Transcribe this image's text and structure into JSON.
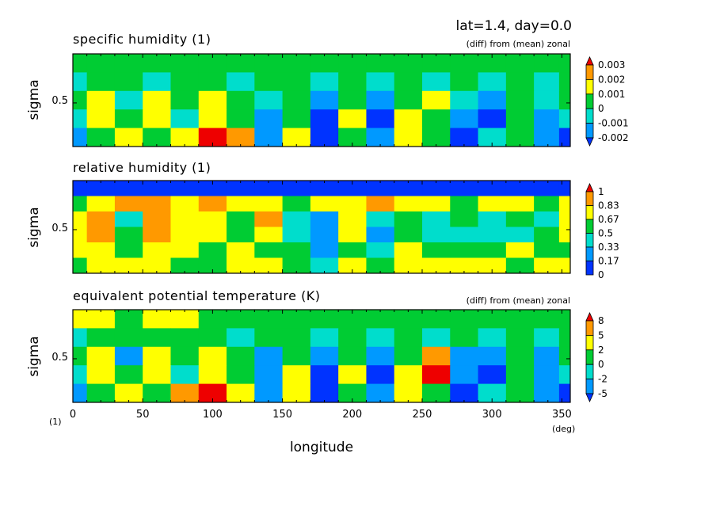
{
  "figure": {
    "header": "lat=1.4, day=0.0",
    "xlabel": "longitude",
    "x_unit": "(deg)",
    "y_unit": "(1)"
  },
  "colors": {
    "levels": [
      "#0033ff",
      "#0099ff",
      "#00ddcc",
      "#00cc33",
      "#ffff00",
      "#ff9900",
      "#ee0000"
    ]
  },
  "chart_data": [
    {
      "type": "heatmap",
      "title": "specific humidity (1)",
      "note": "(diff) from (mean) zonal",
      "ylabel": "sigma",
      "xlim": [
        0,
        356
      ],
      "ylim": [
        0.1,
        0.95
      ],
      "y_ticks": [
        "0.5"
      ],
      "colorbar_labels": [
        "0.003",
        "0.002",
        "0.001",
        "0",
        "-0.001",
        "-0.002"
      ],
      "field": {
        "x": [
          0,
          20,
          40,
          60,
          80,
          100,
          120,
          140,
          160,
          180,
          200,
          220,
          240,
          260,
          280,
          300,
          320,
          340,
          356
        ],
        "y": [
          0.9,
          0.7,
          0.5,
          0.3,
          0.15
        ],
        "levels": [
          [
            3,
            3,
            3,
            3,
            3,
            3,
            3,
            3,
            3,
            3,
            3,
            3,
            3,
            3,
            3,
            3,
            3,
            3,
            3
          ],
          [
            2,
            3,
            3,
            2,
            3,
            3,
            2,
            3,
            3,
            2,
            3,
            2,
            3,
            2,
            3,
            2,
            3,
            2,
            3
          ],
          [
            3,
            4,
            2,
            4,
            3,
            4,
            3,
            2,
            3,
            1,
            3,
            1,
            3,
            4,
            2,
            1,
            3,
            2,
            3
          ],
          [
            2,
            4,
            3,
            4,
            2,
            4,
            3,
            1,
            3,
            0,
            4,
            0,
            4,
            3,
            1,
            0,
            3,
            1,
            2
          ],
          [
            1,
            3,
            4,
            3,
            4,
            6,
            5,
            1,
            4,
            0,
            3,
            1,
            4,
            3,
            0,
            2,
            3,
            1,
            0
          ]
        ]
      }
    },
    {
      "type": "heatmap",
      "title": "relative humidity (1)",
      "ylabel": "sigma",
      "xlim": [
        0,
        356
      ],
      "ylim": [
        0.1,
        0.95
      ],
      "y_ticks": [
        "0.5"
      ],
      "colorbar_labels": [
        "1",
        "0.83",
        "0.67",
        "0.5",
        "0.33",
        "0.17",
        "0"
      ],
      "field": {
        "x": [
          0,
          20,
          40,
          60,
          80,
          100,
          120,
          140,
          160,
          180,
          200,
          220,
          240,
          260,
          280,
          300,
          320,
          340,
          356
        ],
        "y": [
          0.92,
          0.8,
          0.65,
          0.5,
          0.35,
          0.2
        ],
        "levels": [
          [
            0,
            0,
            0,
            0,
            0,
            0,
            0,
            0,
            0,
            0,
            0,
            0,
            0,
            0,
            0,
            0,
            0,
            0,
            0
          ],
          [
            3,
            4,
            5,
            5,
            4,
            5,
            4,
            4,
            3,
            4,
            4,
            5,
            4,
            4,
            3,
            4,
            4,
            3,
            4
          ],
          [
            4,
            5,
            2,
            5,
            4,
            4,
            3,
            5,
            2,
            1,
            4,
            2,
            3,
            2,
            3,
            2,
            3,
            2,
            4
          ],
          [
            4,
            5,
            3,
            5,
            4,
            4,
            3,
            4,
            2,
            1,
            4,
            1,
            3,
            2,
            2,
            2,
            2,
            3,
            4
          ],
          [
            4,
            4,
            3,
            4,
            4,
            3,
            4,
            3,
            3,
            1,
            3,
            2,
            4,
            3,
            3,
            3,
            4,
            3,
            3
          ],
          [
            3,
            4,
            4,
            4,
            3,
            3,
            4,
            4,
            3,
            2,
            4,
            3,
            4,
            4,
            4,
            4,
            3,
            4,
            4
          ]
        ]
      }
    },
    {
      "type": "heatmap",
      "title": "equivalent potential temperature (K)",
      "note": "(diff) from (mean) zonal",
      "ylabel": "sigma",
      "xlim": [
        0,
        356
      ],
      "ylim": [
        0.1,
        0.95
      ],
      "y_ticks": [
        "0.5"
      ],
      "x_ticks": [
        "0",
        "50",
        "100",
        "150",
        "200",
        "250",
        "300",
        "350"
      ],
      "x_tick_values": [
        0,
        50,
        100,
        150,
        200,
        250,
        300,
        350
      ],
      "colorbar_labels": [
        "8",
        "5",
        "2",
        "0",
        "-2",
        "-5"
      ],
      "field": {
        "x": [
          0,
          20,
          40,
          60,
          80,
          100,
          120,
          140,
          160,
          180,
          200,
          220,
          240,
          260,
          280,
          300,
          320,
          340,
          356
        ],
        "y": [
          0.9,
          0.7,
          0.5,
          0.3,
          0.15
        ],
        "levels": [
          [
            4,
            4,
            3,
            4,
            4,
            3,
            3,
            3,
            3,
            3,
            3,
            3,
            3,
            3,
            3,
            3,
            3,
            3,
            3
          ],
          [
            2,
            3,
            3,
            3,
            3,
            3,
            2,
            3,
            3,
            2,
            3,
            2,
            3,
            2,
            3,
            2,
            3,
            2,
            3
          ],
          [
            3,
            4,
            1,
            4,
            3,
            4,
            3,
            1,
            3,
            1,
            3,
            1,
            3,
            5,
            1,
            1,
            3,
            1,
            3
          ],
          [
            2,
            4,
            3,
            4,
            2,
            4,
            3,
            1,
            4,
            0,
            4,
            0,
            4,
            6,
            1,
            0,
            3,
            1,
            2
          ],
          [
            1,
            3,
            4,
            3,
            5,
            6,
            4,
            1,
            4,
            0,
            3,
            1,
            4,
            3,
            0,
            2,
            3,
            1,
            0
          ]
        ]
      }
    }
  ]
}
